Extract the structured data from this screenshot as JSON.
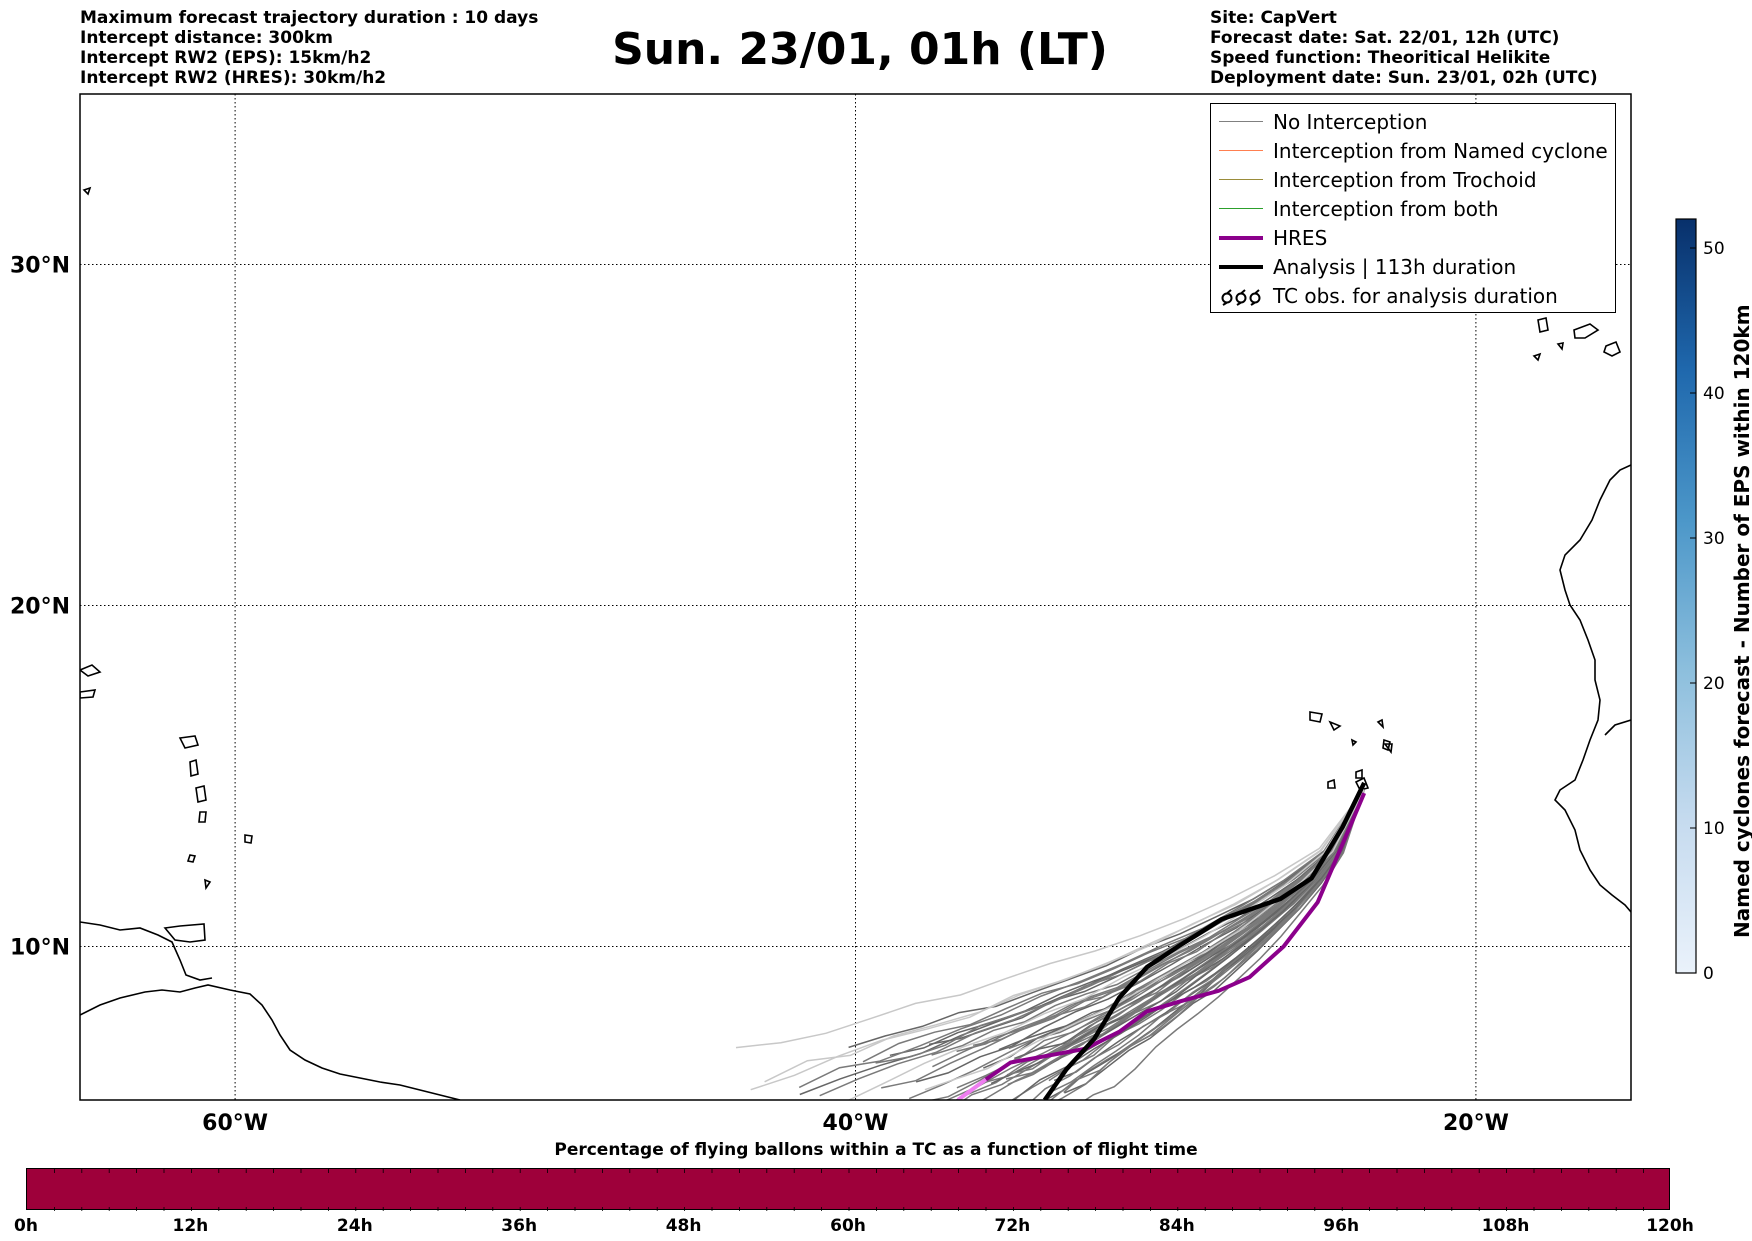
{
  "header_left": [
    "Maximum forecast trajectory duration : 10 days",
    "Intercept distance: 300km",
    "Intercept RW2 (EPS):  15km/h2",
    "Intercept RW2 (HRES): 30km/h2"
  ],
  "title": "Sun. 23/01, 01h (LT)",
  "header_right": [
    "Site: CapVert",
    "Forecast date: Sat. 22/01, 12h (UTC)",
    "Speed function: Theoritical Helikite",
    "Deployment date: Sun. 23/01, 02h (UTC)"
  ],
  "map": {
    "lon_range": [
      -65,
      -15
    ],
    "lat_range": [
      5.5,
      35
    ],
    "gridlines": true,
    "lon_ticks": [
      {
        "value": -60,
        "label": "60°W"
      },
      {
        "value": -40,
        "label": "40°W"
      },
      {
        "value": -20,
        "label": "20°W"
      }
    ],
    "lat_ticks": [
      {
        "value": 30,
        "label": "30°N"
      },
      {
        "value": 20,
        "label": "20°N"
      },
      {
        "value": 10,
        "label": "10°N"
      }
    ],
    "launch_site": {
      "lon": -23.6,
      "lat": 14.8
    }
  },
  "legend": {
    "placement": "top-right",
    "items": [
      {
        "label": "No Interception",
        "color": "#808080",
        "style": "thin"
      },
      {
        "label": "Interception from Named cyclone",
        "color": "#ff7f50",
        "style": "thin"
      },
      {
        "label": "Interception from Trochoid",
        "color": "#9a8c3a",
        "style": "thin"
      },
      {
        "label": "Interception from both",
        "color": "#2ca02c",
        "style": "thin"
      },
      {
        "label": "HRES",
        "color": "#8b008b",
        "style": "thick"
      },
      {
        "label": "Analysis | 113h duration",
        "color": "#000000",
        "style": "thick"
      },
      {
        "label": "TC obs. for analysis duration",
        "color": "#000000",
        "style": "symbols"
      }
    ]
  },
  "colorbar_vertical": {
    "label": "Named cyclones forecast - Number of EPS within 120km",
    "ticks": [
      "0",
      "10",
      "20",
      "30",
      "40",
      "50"
    ],
    "range": [
      0,
      52
    ],
    "colors": [
      "#e8f1fa",
      "#08306b"
    ]
  },
  "colorbar_horizontal": {
    "title": "Percentage of flying ballons within a TC as a function of flight time",
    "ticks": [
      "0h",
      "12h",
      "24h",
      "36h",
      "48h",
      "60h",
      "72h",
      "84h",
      "96h",
      "108h",
      "120h"
    ],
    "fill_color": "#9e003a"
  },
  "trajectories": {
    "analysis": [
      [
        -23.6,
        14.8
      ],
      [
        -24.3,
        13.5
      ],
      [
        -25.3,
        12.0
      ],
      [
        -26.3,
        11.4
      ],
      [
        -28.2,
        10.8
      ],
      [
        -29.6,
        10.0
      ],
      [
        -30.6,
        9.4
      ],
      [
        -31.5,
        8.5
      ],
      [
        -32.3,
        7.3
      ],
      [
        -33.2,
        6.4
      ],
      [
        -33.9,
        5.5
      ]
    ],
    "hres": [
      [
        -23.6,
        14.5
      ],
      [
        -24.3,
        13.0
      ],
      [
        -25.1,
        11.3
      ],
      [
        -26.2,
        10.0
      ],
      [
        -27.3,
        9.1
      ],
      [
        -28.3,
        8.7
      ],
      [
        -29.5,
        8.4
      ],
      [
        -30.6,
        8.1
      ],
      [
        -31.5,
        7.5
      ],
      [
        -32.6,
        7.0
      ],
      [
        -33.8,
        6.8
      ],
      [
        -35.0,
        6.6
      ],
      [
        -35.8,
        6.1
      ],
      [
        -36.7,
        5.5
      ]
    ]
  }
}
